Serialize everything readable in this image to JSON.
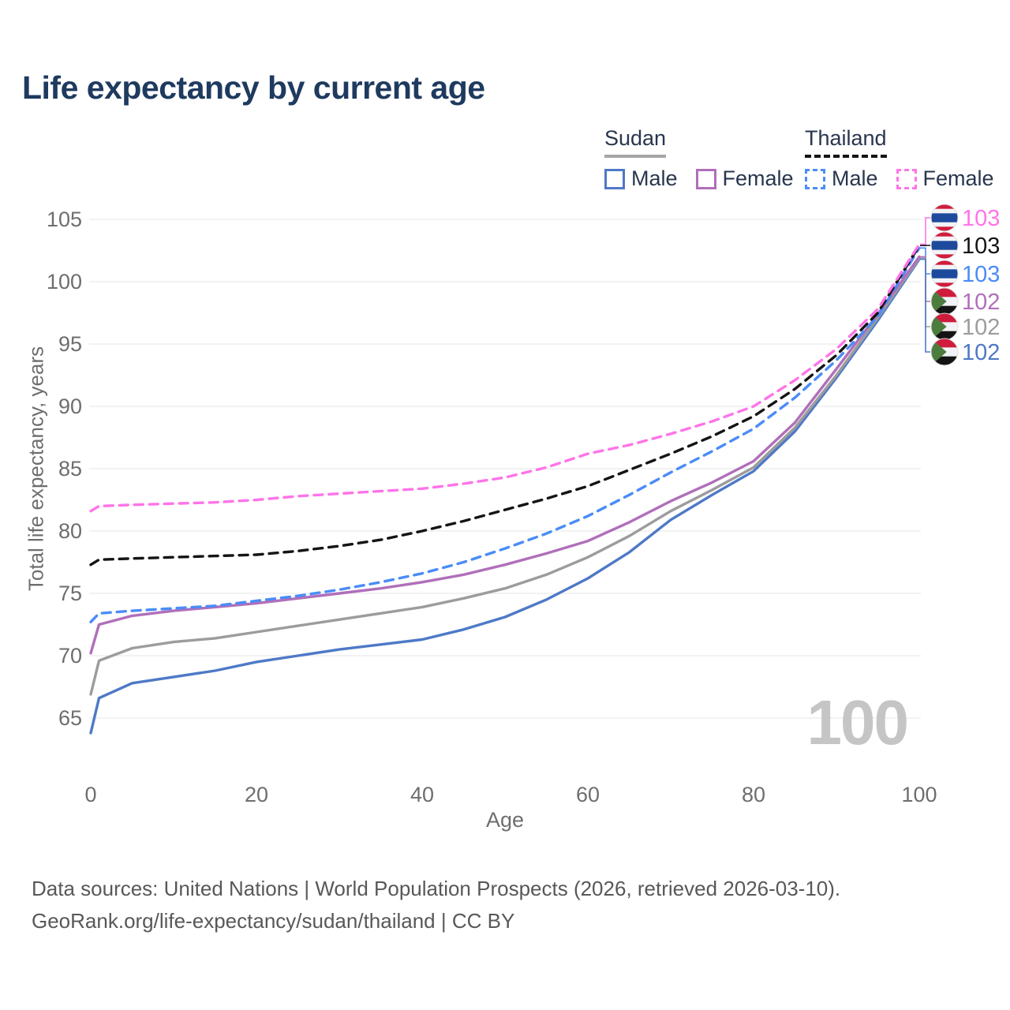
{
  "title": "Life expectancy by current age",
  "legend": {
    "groups": [
      {
        "name": "Sudan",
        "line_style": "solid",
        "underline_color": "#a6a6a6",
        "items": [
          {
            "label": "Male",
            "color": "#4e79c7",
            "dashed": false
          },
          {
            "label": "Female",
            "color": "#b06fba",
            "dashed": false
          }
        ]
      },
      {
        "name": "Thailand",
        "line_style": "dashed",
        "underline_color": "#141414",
        "items": [
          {
            "label": "Male",
            "color": "#4a8cf7",
            "dashed": true
          },
          {
            "label": "Female",
            "color": "#ff74e8",
            "dashed": true
          }
        ]
      }
    ]
  },
  "axes": {
    "x": {
      "label": "Age",
      "ticks": [
        0,
        20,
        40,
        60,
        80,
        100
      ],
      "range": [
        0,
        100
      ]
    },
    "y": {
      "label": "Total life expectancy, years",
      "ticks": [
        65,
        70,
        75,
        80,
        85,
        90,
        95,
        100,
        105
      ],
      "range_shown": [
        65,
        105
      ]
    }
  },
  "watermark": "100",
  "footer": {
    "line1": "Data sources: United Nations | World Population Prospects (2026, retrieved 2026-03-10).",
    "line2": "GeoRank.org/life-expectancy/sudan/thailand | CC BY"
  },
  "chart_data": {
    "type": "line",
    "xlabel": "Age",
    "ylabel": "Total life expectancy, years",
    "x": [
      0,
      1,
      5,
      10,
      15,
      20,
      25,
      30,
      35,
      40,
      45,
      50,
      55,
      60,
      65,
      70,
      75,
      80,
      85,
      90,
      95,
      100
    ],
    "grid": true,
    "series": [
      {
        "name": "Thailand Female",
        "country": "Thailand",
        "sex": "Female",
        "flag": "thailand",
        "color": "#ff74e8",
        "dashed": true,
        "end_label": "103",
        "values": [
          81.6,
          82.0,
          82.1,
          82.2,
          82.3,
          82.5,
          82.8,
          83.0,
          83.2,
          83.4,
          83.8,
          84.3,
          85.1,
          86.2,
          86.9,
          87.8,
          88.8,
          90.0,
          92.1,
          94.6,
          97.8,
          103.0
        ]
      },
      {
        "name": "Thailand",
        "country": "Thailand",
        "sex": "Both",
        "flag": "thailand",
        "color": "#141414",
        "dashed": true,
        "end_label": "103",
        "values": [
          77.3,
          77.7,
          77.8,
          77.9,
          78.0,
          78.1,
          78.4,
          78.8,
          79.3,
          80.0,
          80.8,
          81.7,
          82.6,
          83.6,
          84.9,
          86.2,
          87.6,
          89.2,
          91.4,
          94.1,
          97.5,
          102.9
        ]
      },
      {
        "name": "Thailand Male",
        "country": "Thailand",
        "sex": "Male",
        "flag": "thailand",
        "color": "#4a8cf7",
        "dashed": true,
        "end_label": "103",
        "values": [
          72.7,
          73.4,
          73.6,
          73.8,
          74.0,
          74.4,
          74.8,
          75.3,
          75.9,
          76.6,
          77.5,
          78.6,
          79.8,
          81.2,
          82.9,
          84.7,
          86.4,
          88.2,
          90.7,
          93.7,
          97.2,
          102.7
        ]
      },
      {
        "name": "Sudan Female",
        "country": "Sudan",
        "sex": "Female",
        "flag": "sudan",
        "color": "#b06fba",
        "dashed": false,
        "end_label": "102",
        "values": [
          70.2,
          72.5,
          73.2,
          73.6,
          73.9,
          74.2,
          74.6,
          75.0,
          75.4,
          75.9,
          76.5,
          77.3,
          78.2,
          79.2,
          80.7,
          82.4,
          83.9,
          85.6,
          88.7,
          93.0,
          97.4,
          102.0
        ]
      },
      {
        "name": "Sudan",
        "country": "Sudan",
        "sex": "Both",
        "flag": "sudan",
        "color": "#9c9c9c",
        "dashed": false,
        "end_label": "102",
        "values": [
          66.9,
          69.6,
          70.6,
          71.1,
          71.4,
          71.9,
          72.4,
          72.9,
          73.4,
          73.9,
          74.6,
          75.4,
          76.5,
          77.9,
          79.6,
          81.6,
          83.3,
          85.1,
          88.3,
          92.5,
          97.1,
          101.9
        ]
      },
      {
        "name": "Sudan Male",
        "country": "Sudan",
        "sex": "Male",
        "flag": "sudan",
        "color": "#4e79c7",
        "dashed": false,
        "end_label": "102",
        "values": [
          63.8,
          66.6,
          67.8,
          68.3,
          68.8,
          69.5,
          70.0,
          70.5,
          70.9,
          71.3,
          72.1,
          73.1,
          74.5,
          76.2,
          78.3,
          80.9,
          82.9,
          84.8,
          88.0,
          92.3,
          96.9,
          101.8
        ]
      }
    ]
  },
  "colors": {
    "title": "#1e3a5f",
    "axis_text": "#6e6e6e",
    "gridline": "#eaeaea",
    "watermark": "#c5c5c5",
    "footer_text": "#585858",
    "flag_thailand": {
      "red": "#d01c3c",
      "white": "#f2f3f6",
      "blue": "#1d4a9c"
    },
    "flag_sudan": {
      "red": "#d01c3c",
      "white": "#f2f3f6",
      "black": "#141414",
      "green": "#4d7c3f"
    }
  }
}
